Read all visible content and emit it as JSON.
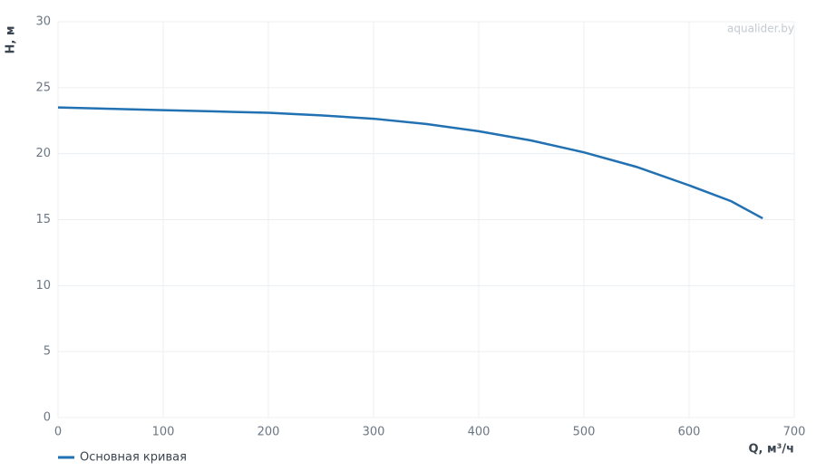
{
  "chart_data": {
    "type": "line",
    "watermark": "aqualider.by",
    "x_label": "Q, м³/ч",
    "y_label": "H, м",
    "x": [
      0,
      50,
      100,
      150,
      200,
      250,
      300,
      350,
      400,
      450,
      500,
      550,
      600,
      640,
      670
    ],
    "series": [
      {
        "name": "Основная кривая",
        "color": "#2271b3",
        "values": [
          23.5,
          23.4,
          23.3,
          23.2,
          23.1,
          22.9,
          22.65,
          22.25,
          21.7,
          21.0,
          20.1,
          19.0,
          17.6,
          16.4,
          15.1
        ]
      }
    ],
    "xlim": [
      0,
      700
    ],
    "xticks": [
      0,
      100,
      200,
      300,
      400,
      500,
      600,
      700
    ],
    "ylim": [
      0,
      30
    ],
    "yticks": [
      0,
      5,
      10,
      15,
      20,
      25,
      30
    ],
    "grid": true,
    "legend": "bottom-left"
  }
}
